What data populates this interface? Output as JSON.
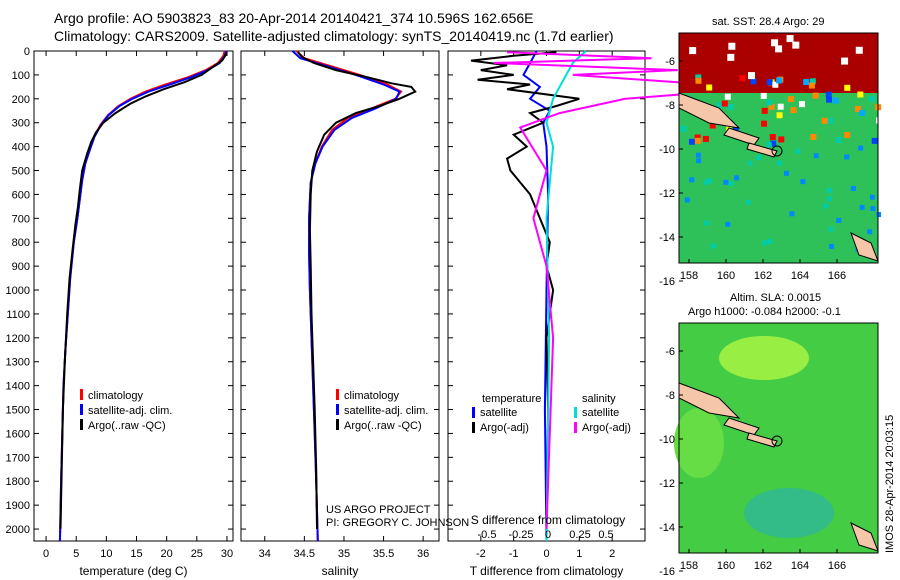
{
  "header": {
    "line1": "Argo profile: AO 5903823_83 20-Apr-2014 20140421_374 10.596S 162.656E",
    "line2": "Climatology: CARS2009. Satellite-adjusted climatology: synTS_20140419.nc (1.7d earlier)"
  },
  "project": {
    "line1": "US ARGO PROJECT",
    "line2": "PI: GREGORY C. JOHNSON"
  },
  "stamp": "IMOS 28-Apr-2014 20:03:15",
  "colors": {
    "climatology": "#ff0000",
    "satellite": "#0000ff",
    "argo": "#000000",
    "sal_satellite": "#00dddd",
    "sal_argo": "#ff00ff"
  },
  "depth_ticks": [
    "0",
    "100",
    "200",
    "300",
    "400",
    "500",
    "600",
    "700",
    "800",
    "900",
    "1000",
    "1100",
    "1200",
    "1300",
    "1400",
    "1500",
    "1600",
    "1700",
    "1800",
    "1900",
    "2000"
  ],
  "chart_data": [
    {
      "type": "line",
      "id": "temperature",
      "xlabel": "temperature (deg C)",
      "ylabel": "",
      "xlim": [
        -2,
        31
      ],
      "ylim": [
        2080,
        0
      ],
      "xticks": [
        "0",
        "5",
        "10",
        "15",
        "20",
        "25",
        "30"
      ],
      "xtick_values": [
        0,
        5,
        10,
        15,
        20,
        25,
        30
      ],
      "legend": [
        "climatology",
        "satellite-adj. clim.",
        "Argo(..raw -QC)"
      ],
      "series": [
        {
          "name": "climatology",
          "color": "#ff0000",
          "x": [
            29.6,
            29.4,
            28.5,
            26.5,
            23.5,
            19.8,
            16.5,
            14.0,
            12.0,
            10.2,
            9.0,
            8.0,
            7.3,
            6.5,
            6.0,
            5.6,
            5.2,
            4.6,
            4.0,
            3.6,
            3.2,
            2.9,
            2.7,
            2.5,
            2.35,
            2.3
          ],
          "y": [
            0,
            20,
            50,
            80,
            110,
            140,
            170,
            200,
            230,
            270,
            310,
            360,
            410,
            470,
            540,
            620,
            700,
            800,
            950,
            1100,
            1250,
            1400,
            1600,
            1800,
            2000,
            2050
          ]
        },
        {
          "name": "satellite-adj. clim.",
          "color": "#0000ff",
          "x": [
            29.9,
            29.6,
            28.8,
            26.8,
            24.0,
            20.5,
            17.0,
            14.3,
            12.2,
            10.3,
            9.1,
            8.0,
            7.3,
            6.5,
            6.0,
            5.6,
            5.2,
            4.6,
            4.0,
            3.6,
            3.2,
            2.9,
            2.7,
            2.5,
            2.35,
            2.3
          ],
          "y": [
            0,
            20,
            50,
            80,
            110,
            140,
            170,
            200,
            230,
            270,
            310,
            360,
            410,
            470,
            540,
            620,
            700,
            800,
            950,
            1100,
            1250,
            1400,
            1600,
            1800,
            2000,
            2050
          ]
        },
        {
          "name": "Argo(..raw -QC)",
          "color": "#000000",
          "x": [
            30.0,
            29.7,
            29.2,
            27.5,
            25.8,
            23.0,
            19.5,
            16.5,
            14.0,
            11.5,
            9.5,
            8.3,
            7.5,
            6.8,
            6.0,
            5.6,
            5.3,
            4.9,
            4.4,
            3.9,
            3.5,
            3.1,
            2.8,
            2.6,
            2.4
          ],
          "y": [
            5,
            20,
            40,
            70,
            100,
            130,
            160,
            190,
            220,
            260,
            300,
            340,
            380,
            430,
            500,
            580,
            650,
            720,
            830,
            950,
            1100,
            1300,
            1500,
            1750,
            2000
          ]
        }
      ]
    },
    {
      "type": "line",
      "id": "salinity",
      "xlabel": "salinity",
      "ylabel": "",
      "xlim": [
        33.7,
        36.2
      ],
      "ylim": [
        2080,
        0
      ],
      "xticks": [
        "34",
        "34.5",
        "35",
        "35.5",
        "36"
      ],
      "xtick_values": [
        34,
        34.5,
        35,
        35.5,
        36
      ],
      "legend": [
        "climatology",
        "satellite-adj. clim.",
        "Argo(..raw -QC)"
      ],
      "series": [
        {
          "name": "climatology",
          "color": "#ff0000",
          "x": [
            34.4,
            34.5,
            34.8,
            35.2,
            35.55,
            35.72,
            35.65,
            35.35,
            35.05,
            34.85,
            34.72,
            34.64,
            34.58,
            34.56,
            34.56,
            34.57,
            34.59,
            34.61,
            34.63,
            34.65,
            34.67
          ],
          "y": [
            0,
            30,
            60,
            100,
            140,
            170,
            200,
            240,
            280,
            330,
            400,
            470,
            550,
            700,
            850,
            1000,
            1200,
            1400,
            1600,
            1800,
            2050
          ]
        },
        {
          "name": "satellite-adj. clim.",
          "color": "#0000ff",
          "x": [
            34.35,
            34.45,
            34.75,
            35.15,
            35.5,
            35.7,
            35.66,
            35.4,
            35.1,
            34.88,
            34.73,
            34.64,
            34.58,
            34.56,
            34.56,
            34.57,
            34.59,
            34.61,
            34.63,
            34.65,
            34.67
          ],
          "y": [
            0,
            30,
            60,
            100,
            140,
            170,
            200,
            240,
            280,
            330,
            400,
            470,
            550,
            700,
            850,
            1000,
            1200,
            1400,
            1600,
            1800,
            2050
          ]
        },
        {
          "name": "Argo(..raw -QC)",
          "color": "#000000",
          "x": [
            34.42,
            34.47,
            34.62,
            34.9,
            35.3,
            35.6,
            35.85,
            35.9,
            35.7,
            35.45,
            35.15,
            34.9,
            34.75,
            34.66,
            34.6,
            34.58,
            34.57,
            34.58,
            34.59,
            34.61,
            34.63,
            34.65,
            34.66
          ],
          "y": [
            5,
            25,
            50,
            80,
            110,
            135,
            150,
            170,
            200,
            230,
            260,
            300,
            350,
            420,
            500,
            600,
            750,
            900,
            1100,
            1300,
            1500,
            1750,
            2000
          ]
        }
      ]
    },
    {
      "type": "line",
      "id": "differences",
      "xlabel": "T difference from climatology",
      "xlabel_top": "S difference from climatology",
      "xlim": [
        -3,
        3
      ],
      "ylim": [
        2080,
        0
      ],
      "xticks": [
        "-2",
        "-1",
        "0",
        "1",
        "2"
      ],
      "xtick_values": [
        -2,
        -1,
        0,
        1,
        2
      ],
      "xticks_top": [
        "-0.5",
        "-0.25",
        "0",
        "0.25",
        "0.5"
      ],
      "legend": {
        "temperature": "temperature",
        "salinity": "salinity",
        "satellite": "satellite",
        "argo": "Argo(-adj)"
      },
      "series": [
        {
          "name": "satellite",
          "group": "temperature",
          "color": "#0000ff",
          "x": [
            -0.3,
            -0.5,
            -0.7,
            -0.2,
            -0.5,
            0.1,
            -0.1,
            0.0,
            0.05,
            0.0,
            -0.05,
            0.0
          ],
          "y": [
            0,
            50,
            100,
            150,
            200,
            250,
            300,
            400,
            600,
            1000,
            1500,
            2050
          ]
        },
        {
          "name": "Argo(-adj)",
          "group": "temperature",
          "color": "#000000",
          "x": [
            0.3,
            -1.0,
            -2.3,
            -1.2,
            -2.0,
            -1.0,
            -2.1,
            -0.5,
            -1.2,
            1.0,
            0.3,
            -0.5,
            -0.1,
            -1.0,
            -0.6,
            -1.2,
            -1.1,
            -0.5,
            -0.2,
            0.1,
            0.0,
            0.2,
            0.0,
            0.05,
            0.0
          ],
          "y": [
            5,
            20,
            40,
            60,
            80,
            100,
            120,
            140,
            160,
            200,
            230,
            260,
            300,
            350,
            400,
            450,
            500,
            600,
            700,
            800,
            900,
            1000,
            1200,
            1500,
            2000
          ]
        },
        {
          "name": "satellite",
          "group": "salinity",
          "color": "#00dddd",
          "x": [
            0.3,
            0.2,
            0.15,
            0.1,
            0.05,
            0.0,
            0.05,
            0.0,
            0.02,
            0.0
          ],
          "y": [
            0,
            50,
            100,
            150,
            200,
            300,
            400,
            700,
            1200,
            2050
          ]
        },
        {
          "name": "Argo(-adj)",
          "group": "salinity",
          "color": "#ff00ff",
          "x": [
            -0.3,
            0.8,
            -0.4,
            1.0,
            0.2,
            1.5,
            1.3,
            0.6,
            0.1,
            -0.2,
            0.0,
            -0.1,
            0.0,
            0.05,
            0.0
          ],
          "y": [
            5,
            30,
            50,
            80,
            100,
            150,
            170,
            200,
            260,
            320,
            500,
            700,
            900,
            1200,
            2000
          ]
        }
      ]
    }
  ],
  "maps": [
    {
      "id": "sst-map",
      "title": "sat. SST: 28.4 Argo: 29",
      "lon_ticks": [
        "158",
        "160",
        "162",
        "164",
        "166"
      ],
      "lat_ticks": [
        "-6",
        "-8",
        "-10",
        "-12",
        "-14",
        "-16"
      ]
    },
    {
      "id": "sla-map",
      "title1": "Altim. SLA: 0.0015",
      "title2": "Argo h1000: -0.084 h2000: -0.1",
      "lon_ticks": [
        "158",
        "160",
        "162",
        "164",
        "166"
      ],
      "lat_ticks": [
        "-6",
        "-8",
        "-10",
        "-12",
        "-14",
        "-16"
      ]
    }
  ]
}
